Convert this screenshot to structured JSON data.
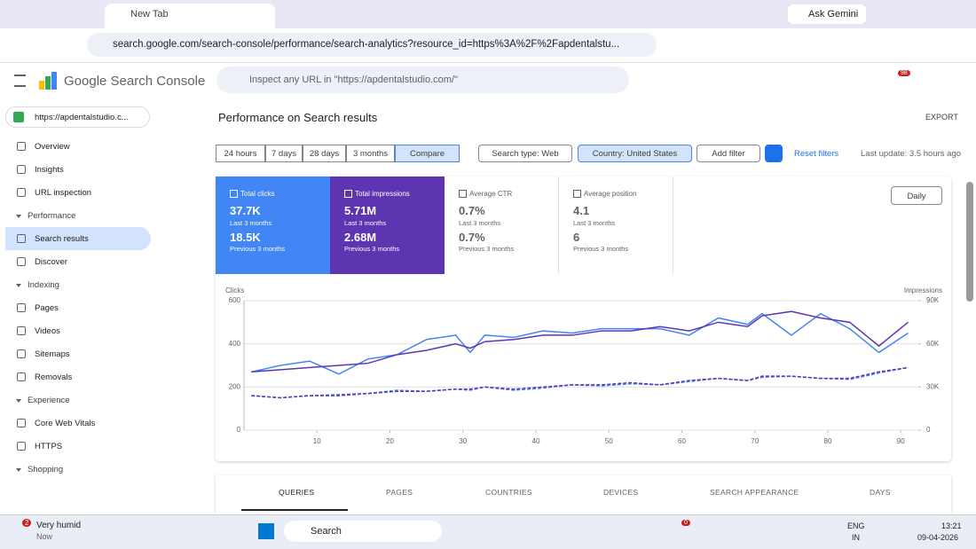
{
  "browser": {
    "tab_title": "New Tab",
    "gemini": "Ask Gemini",
    "url": "search.google.com/search-console/performance/search-analytics?resource_id=https%3A%2F%2Fapdentalstu..."
  },
  "header": {
    "logo": "Google Search Console",
    "search": "Inspect any URL in \"https://apdentalstudio.com/\"",
    "badge": "98"
  },
  "sidebar": {
    "property": "https://apdentalstudio.c...",
    "items": [
      {
        "label": "Overview",
        "kind": "item"
      },
      {
        "label": "Insights",
        "kind": "item"
      },
      {
        "label": "URL inspection",
        "kind": "item"
      },
      {
        "label": "Performance",
        "kind": "section"
      },
      {
        "label": "Search results",
        "kind": "item",
        "active": true
      },
      {
        "label": "Discover",
        "kind": "item"
      },
      {
        "label": "Indexing",
        "kind": "section"
      },
      {
        "label": "Pages",
        "kind": "item"
      },
      {
        "label": "Videos",
        "kind": "item"
      },
      {
        "label": "Sitemaps",
        "kind": "item"
      },
      {
        "label": "Removals",
        "kind": "item"
      },
      {
        "label": "Experience",
        "kind": "section"
      },
      {
        "label": "Core Web Vitals",
        "kind": "item"
      },
      {
        "label": "HTTPS",
        "kind": "item"
      },
      {
        "label": "Shopping",
        "kind": "section"
      }
    ]
  },
  "page": {
    "title": "Performance on Search results",
    "export": "EXPORT",
    "ranges": [
      "24 hours",
      "7 days",
      "28 days",
      "3 months",
      "Compare"
    ],
    "search_type": "Search type: Web",
    "country": "Country: United States",
    "add_filter": "Add filter",
    "reset": "Reset filters",
    "last_update": "Last update: 3.5 hours ago",
    "granularity": "Daily"
  },
  "metrics": [
    {
      "label": "Total clicks",
      "current": "37.7K",
      "current_period": "Last 3 months",
      "previous": "18.5K",
      "previous_period": "Previous 3 months"
    },
    {
      "label": "Total impressions",
      "current": "5.71M",
      "current_period": "Last 3 months",
      "previous": "2.68M",
      "previous_period": "Previous 3 months"
    },
    {
      "label": "Average CTR",
      "current": "0.7%",
      "current_period": "Last 3 months",
      "previous": "0.7%",
      "previous_period": "Previous 3 months"
    },
    {
      "label": "Average position",
      "current": "4.1",
      "current_period": "Last 3 months",
      "previous": "6",
      "previous_period": "Previous 3 months"
    }
  ],
  "chart_data": {
    "type": "line",
    "y_label": "Clicks",
    "y2_label": "Impressions",
    "x": [
      1,
      5,
      9,
      13,
      17,
      21,
      25,
      29,
      31,
      33,
      37,
      41,
      45,
      49,
      53,
      57,
      61,
      65,
      69,
      71,
      75,
      79,
      83,
      87,
      91
    ],
    "xlim": [
      0,
      92.4
    ],
    "xticks": [
      10,
      20,
      30,
      40,
      50,
      60,
      70,
      80,
      90
    ],
    "ylim": [
      0,
      600
    ],
    "yticks": [
      0,
      200,
      400,
      600
    ],
    "y2lim": [
      0,
      90000
    ],
    "y2ticks": [
      0,
      {
        "value": 30000,
        "label": "30K"
      },
      {
        "value": 60000,
        "label": "60K"
      },
      {
        "value": 90000,
        "label": "90K"
      }
    ],
    "series": [
      {
        "color": "#4285f4",
        "dashed": false,
        "values": [
          270,
          300,
          320,
          260,
          330,
          350,
          420,
          440,
          360,
          440,
          430,
          460,
          450,
          470,
          470,
          470,
          440,
          520,
          490,
          540,
          440,
          540,
          470,
          360,
          450
        ]
      },
      {
        "color": "#5e35b1",
        "dashed": false,
        "axis": "y2",
        "values": [
          40500,
          42000,
          43500,
          45000,
          46500,
          52500,
          55500,
          60000,
          57000,
          61500,
          63000,
          66000,
          66000,
          69000,
          69000,
          72000,
          69000,
          75000,
          72000,
          79500,
          82500,
          78000,
          75000,
          58500,
          75000
        ]
      },
      {
        "color": "#4285f4",
        "dashed": true,
        "values": [
          160,
          150,
          160,
          165,
          170,
          185,
          180,
          190,
          185,
          200,
          185,
          195,
          210,
          205,
          215,
          210,
          225,
          240,
          230,
          245,
          250,
          240,
          235,
          265,
          290
        ]
      },
      {
        "color": "#5e35b1",
        "dashed": true,
        "axis": "y2",
        "values": [
          24000,
          22500,
          24000,
          24000,
          25500,
          27000,
          27000,
          28500,
          28500,
          30000,
          28500,
          30000,
          31500,
          31500,
          33000,
          31500,
          34500,
          36000,
          34500,
          37500,
          37500,
          36000,
          36000,
          40500,
          43500
        ]
      }
    ]
  },
  "tabs": [
    "QUERIES",
    "PAGES",
    "COUNTRIES",
    "DEVICES",
    "SEARCH APPEARANCE",
    "DAYS"
  ],
  "taskbar": {
    "weather_badge": "2",
    "weather": "Very humid",
    "weather_sub": "Now",
    "search": "Search",
    "chrome_badge": "0",
    "lang": "ENG",
    "region": "IN",
    "time": "13:21",
    "date": "09-04-2026"
  }
}
